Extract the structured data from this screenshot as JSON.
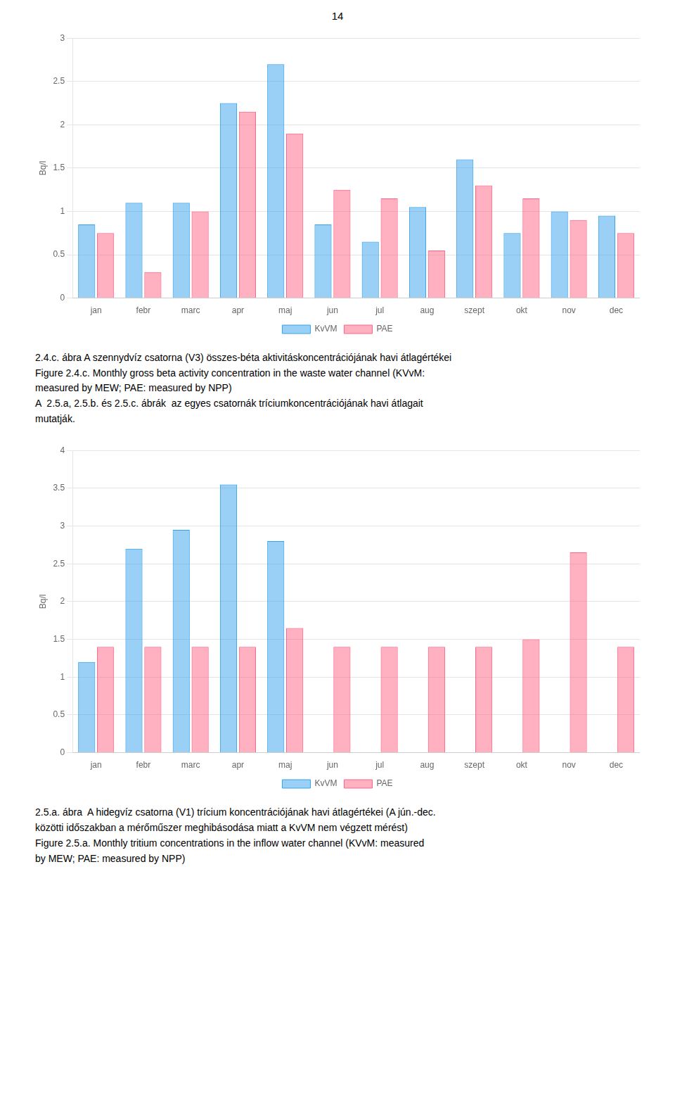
{
  "page_number": "14",
  "chart_data": [
    {
      "type": "bar",
      "y_label": "Bq/l",
      "categories": [
        "jan",
        "febr",
        "marc",
        "apr",
        "maj",
        "jun",
        "jul",
        "aug",
        "szept",
        "okt",
        "nov",
        "dec"
      ],
      "series": [
        {
          "name": "KvVM",
          "values": [
            0.85,
            1.1,
            1.1,
            2.25,
            2.7,
            0.85,
            0.65,
            1.05,
            1.6,
            0.75,
            1.0,
            0.95
          ]
        },
        {
          "name": "PAE",
          "values": [
            0.75,
            0.3,
            1.0,
            2.15,
            1.9,
            1.25,
            1.15,
            0.55,
            1.3,
            1.15,
            0.9,
            0.75
          ]
        }
      ],
      "ylim": [
        0,
        3
      ],
      "yticks": [
        0,
        0.5,
        1,
        1.5,
        2,
        2.5,
        3
      ],
      "grid": true,
      "legend": "bottom",
      "annotations": [
        "2.4.c. ábra A szennydvíz csatorna (V3) összes-béta aktivitáskoncentrációjának havi átlagértékei",
        "Figure 2.4.c. Monthly gross beta activity concentration in the waste water channel (KVvM:",
        "measured by MEW; PAE: measured by NPP)",
        "A  2.5.a, 2.5.b. és 2.5.c. ábrák  az egyes csatornák tríciumkoncentrációjának havi átlagait",
        "mutatják."
      ]
    },
    {
      "type": "bar",
      "y_label": "Bq/l",
      "categories": [
        "jan",
        "febr",
        "marc",
        "apr",
        "maj",
        "jun",
        "jul",
        "aug",
        "szept",
        "okt",
        "nov",
        "dec"
      ],
      "series": [
        {
          "name": "KvVM",
          "values": [
            1.2,
            2.7,
            2.95,
            3.55,
            2.8,
            0,
            0,
            0,
            0,
            0,
            0,
            0
          ]
        },
        {
          "name": "PAE",
          "values": [
            1.4,
            1.4,
            1.4,
            1.4,
            1.65,
            1.4,
            1.4,
            1.4,
            1.4,
            1.5,
            2.65,
            1.4
          ]
        }
      ],
      "ylim": [
        0,
        4
      ],
      "yticks": [
        0,
        0.5,
        1,
        1.5,
        2,
        2.5,
        3,
        3.5,
        4
      ],
      "grid": true,
      "legend": "bottom",
      "annotations": [
        "2.5.a. ábra  A hidegvíz csatorna (V1) trícium koncentrációjának havi átlagértékei (A jún.-dec.",
        "közötti időszakban a mérőműszer meghibásodása miatt a KvVM nem végzett mérést)",
        "Figure 2.5.a. Monthly tritium concentrations in the inflow water channel (KVvM: measured",
        "by MEW; PAE: measured by NPP)"
      ]
    }
  ]
}
